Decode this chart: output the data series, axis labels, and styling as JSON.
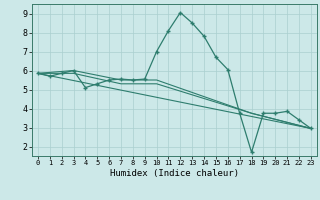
{
  "xlabel": "Humidex (Indice chaleur)",
  "bg_color": "#cce8e8",
  "grid_color": "#aacfcf",
  "line_color": "#2e7d6e",
  "xlim": [
    -0.5,
    23.5
  ],
  "ylim": [
    1.5,
    9.5
  ],
  "xticks": [
    0,
    1,
    2,
    3,
    4,
    5,
    6,
    7,
    8,
    9,
    10,
    11,
    12,
    13,
    14,
    15,
    16,
    17,
    18,
    19,
    20,
    21,
    22,
    23
  ],
  "yticks": [
    2,
    3,
    4,
    5,
    6,
    7,
    8,
    9
  ],
  "main_series": {
    "x": [
      0,
      1,
      2,
      3,
      4,
      5,
      6,
      7,
      8,
      9,
      10,
      11,
      12,
      13,
      14,
      15,
      16,
      17,
      18,
      19,
      20,
      21,
      22,
      23
    ],
    "y": [
      5.85,
      5.7,
      5.85,
      6.0,
      5.1,
      5.3,
      5.5,
      5.55,
      5.5,
      5.55,
      7.0,
      8.1,
      9.05,
      8.5,
      7.8,
      6.7,
      6.05,
      3.75,
      1.7,
      3.75,
      3.75,
      3.85,
      3.4,
      2.95
    ]
  },
  "trend_lines": [
    {
      "x": [
        0,
        23
      ],
      "y": [
        5.85,
        2.95
      ]
    },
    {
      "x": [
        0,
        3,
        7,
        10,
        18,
        23
      ],
      "y": [
        5.85,
        6.0,
        5.5,
        5.5,
        3.75,
        2.95
      ]
    },
    {
      "x": [
        0,
        3,
        7,
        10,
        18,
        23
      ],
      "y": [
        5.85,
        5.85,
        5.3,
        5.3,
        3.75,
        2.95
      ]
    }
  ]
}
